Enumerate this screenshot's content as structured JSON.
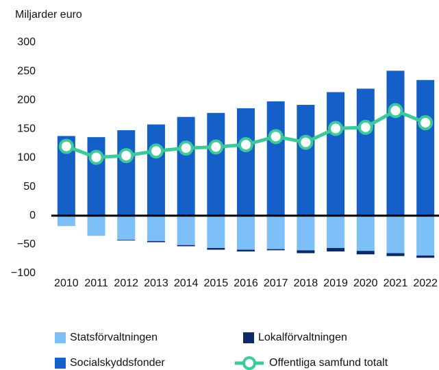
{
  "chart_data": {
    "type": "bar",
    "stacked": true,
    "y_label": "Miljarder euro",
    "categories": [
      "2010",
      "2011",
      "2012",
      "2013",
      "2014",
      "2015",
      "2016",
      "2017",
      "2018",
      "2019",
      "2020",
      "2021",
      "2022"
    ],
    "ylim": [
      -100,
      300
    ],
    "yticks": [
      {
        "value": -100,
        "label": "−100"
      },
      {
        "value": -50,
        "label": "−50"
      },
      0,
      50,
      100,
      150,
      200,
      250,
      300
    ],
    "grid": false,
    "series": [
      {
        "name": "Statsförvaltningen",
        "color": "#7cc0f7",
        "values": [
          -18,
          -35,
          -42,
          -44,
          -51,
          -56,
          -59,
          -58,
          -60,
          -56,
          -61,
          -65,
          -69
        ]
      },
      {
        "name": "Lokalförvaltningen",
        "color": "#0b2a66",
        "values": [
          0,
          0,
          -1,
          -2,
          -2,
          -3,
          -3,
          -2,
          -5,
          -6,
          -6,
          -5,
          -4
        ]
      },
      {
        "name": "Socialskyddsfonder",
        "color": "#1560c8",
        "values": [
          138,
          136,
          148,
          158,
          171,
          178,
          186,
          198,
          192,
          214,
          220,
          251,
          235
        ]
      },
      {
        "name": "Offentliga samfund totalt",
        "color": "#3ec99a",
        "type": "line",
        "values": [
          120,
          101,
          104,
          112,
          117,
          119,
          123,
          137,
          127,
          151,
          153,
          182,
          161
        ]
      }
    ]
  }
}
